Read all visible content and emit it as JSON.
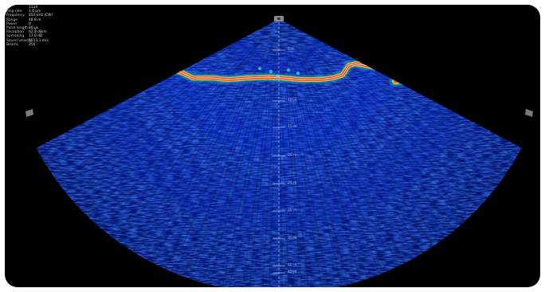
{
  "status_panel": {
    "rows": [
      {
        "label": "",
        "value": "1134"
      },
      {
        "label": "Ping rate",
        "value": "1.0 p/s"
      },
      {
        "label": "Frequency",
        "value": "450 kHz (CW)"
      },
      {
        "label": "Range",
        "value": "48.8 m"
      },
      {
        "label": "Power",
        "value": "0"
      },
      {
        "label": "Pulse length",
        "value": "80 µs"
      },
      {
        "label": "Reception",
        "value": "62.8 dB/m"
      },
      {
        "label": "Spreading",
        "value": "17.0 dB"
      },
      {
        "label": "Sound velocity",
        "value": "1513.1 m/s"
      },
      {
        "label": "Beams",
        "value": "256"
      }
    ]
  },
  "range_labels": [
    "5 m",
    "10 m",
    "15 m",
    "20 m",
    "25 m",
    "30 m",
    "35 m",
    "40 m",
    "45 m"
  ],
  "colors": {
    "background": "#000000",
    "fan_deep": "#04156e",
    "fan_mid": "#0a2fd0",
    "echo_strong": "#ff2a1a",
    "echo_mid": "#f6e21a",
    "echo_low": "#21c6b8",
    "center_line": "#cfd6ff"
  },
  "icons": {
    "transducer": "sonar-head-icon",
    "left_edge": "left-sector-handle-icon",
    "right_edge": "right-sector-handle-icon"
  }
}
